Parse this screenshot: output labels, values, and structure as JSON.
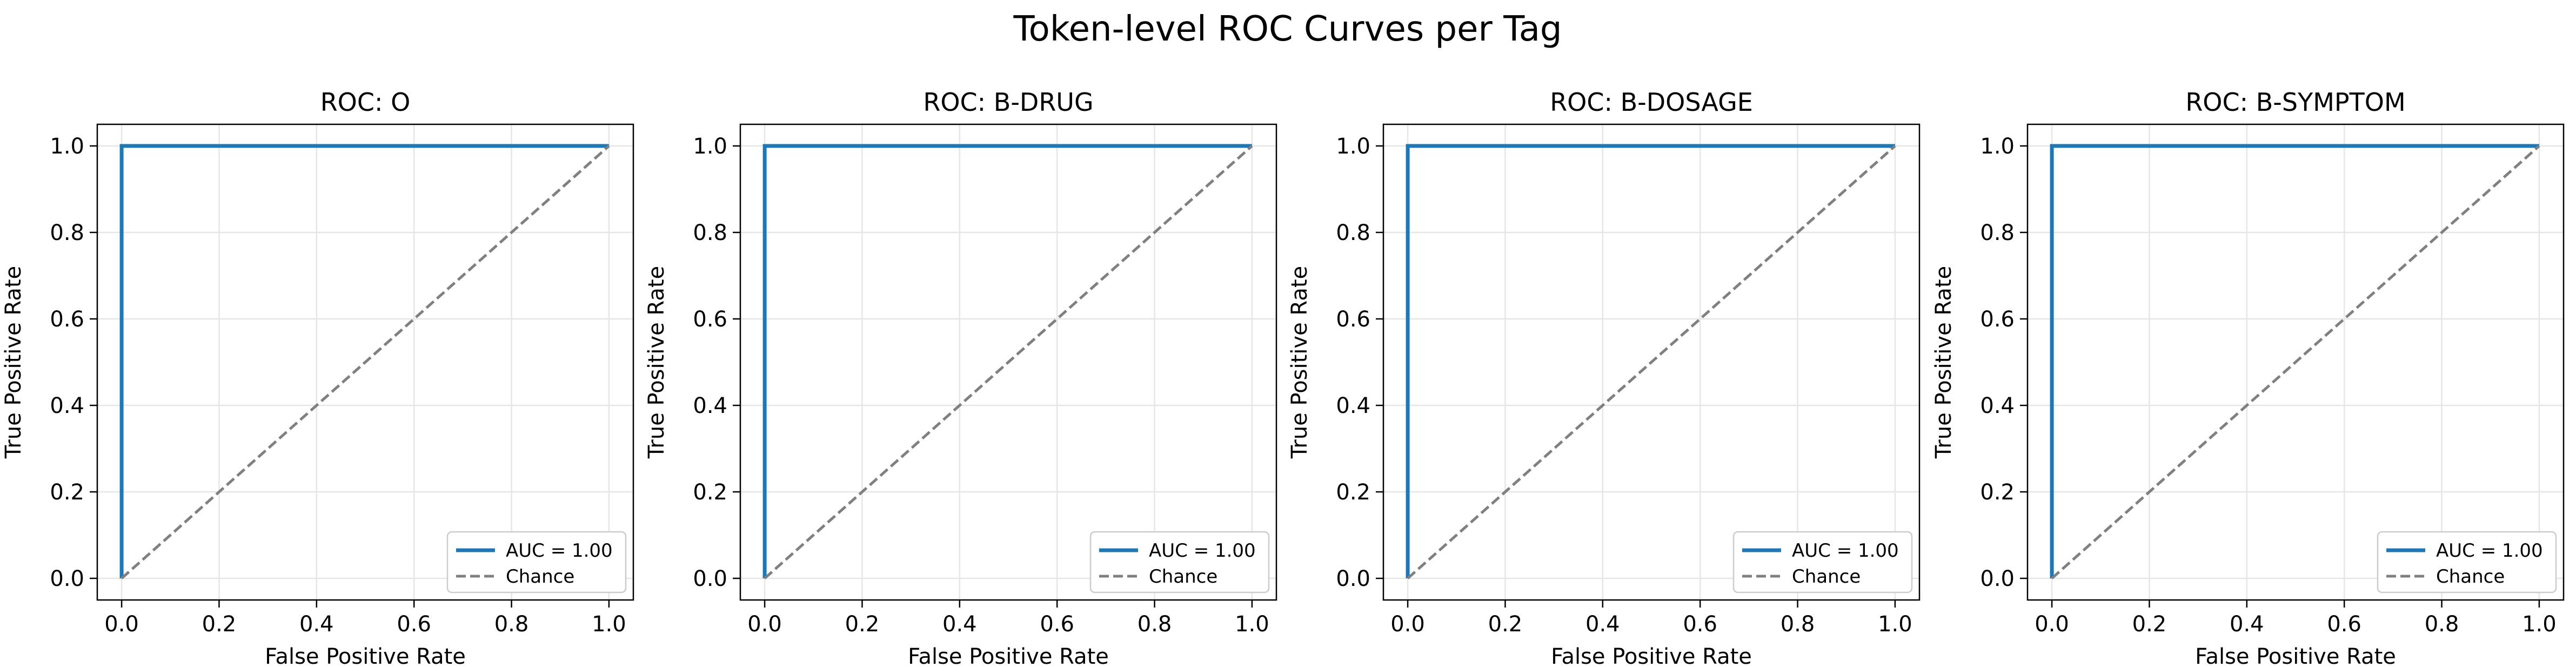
{
  "figure": {
    "title": "Token-level ROC Curves per Tag"
  },
  "colors": {
    "roc_line": "#1f77b4",
    "chance_line": "#808080",
    "grid": "#e6e6e6",
    "axes": "#000000",
    "background": "#ffffff"
  },
  "chart_data": [
    {
      "type": "line",
      "title": "ROC: O",
      "xlabel": "False Positive Rate",
      "ylabel": "True Positive Rate",
      "xlim": [
        -0.05,
        1.05
      ],
      "ylim": [
        -0.05,
        1.05
      ],
      "xticks": [
        "0.0",
        "0.2",
        "0.4",
        "0.6",
        "0.8",
        "1.0"
      ],
      "yticks": [
        "0.0",
        "0.2",
        "0.4",
        "0.6",
        "0.8",
        "1.0"
      ],
      "grid": true,
      "legend_position": "lower-right",
      "series": [
        {
          "name": "AUC = 1.00",
          "style": "solid",
          "x": [
            0.0,
            0.0,
            1.0
          ],
          "y": [
            0.0,
            1.0,
            1.0
          ]
        },
        {
          "name": "Chance",
          "style": "dashed",
          "x": [
            0.0,
            1.0
          ],
          "y": [
            0.0,
            1.0
          ]
        }
      ]
    },
    {
      "type": "line",
      "title": "ROC: B-DRUG",
      "xlabel": "False Positive Rate",
      "ylabel": "True Positive Rate",
      "xlim": [
        -0.05,
        1.05
      ],
      "ylim": [
        -0.05,
        1.05
      ],
      "xticks": [
        "0.0",
        "0.2",
        "0.4",
        "0.6",
        "0.8",
        "1.0"
      ],
      "yticks": [
        "0.0",
        "0.2",
        "0.4",
        "0.6",
        "0.8",
        "1.0"
      ],
      "grid": true,
      "legend_position": "lower-right",
      "series": [
        {
          "name": "AUC = 1.00",
          "style": "solid",
          "x": [
            0.0,
            0.0,
            1.0
          ],
          "y": [
            0.0,
            1.0,
            1.0
          ]
        },
        {
          "name": "Chance",
          "style": "dashed",
          "x": [
            0.0,
            1.0
          ],
          "y": [
            0.0,
            1.0
          ]
        }
      ]
    },
    {
      "type": "line",
      "title": "ROC: B-DOSAGE",
      "xlabel": "False Positive Rate",
      "ylabel": "True Positive Rate",
      "xlim": [
        -0.05,
        1.05
      ],
      "ylim": [
        -0.05,
        1.05
      ],
      "xticks": [
        "0.0",
        "0.2",
        "0.4",
        "0.6",
        "0.8",
        "1.0"
      ],
      "yticks": [
        "0.0",
        "0.2",
        "0.4",
        "0.6",
        "0.8",
        "1.0"
      ],
      "grid": true,
      "legend_position": "lower-right",
      "series": [
        {
          "name": "AUC = 1.00",
          "style": "solid",
          "x": [
            0.0,
            0.0,
            1.0
          ],
          "y": [
            0.0,
            1.0,
            1.0
          ]
        },
        {
          "name": "Chance",
          "style": "dashed",
          "x": [
            0.0,
            1.0
          ],
          "y": [
            0.0,
            1.0
          ]
        }
      ]
    },
    {
      "type": "line",
      "title": "ROC: B-SYMPTOM",
      "xlabel": "False Positive Rate",
      "ylabel": "True Positive Rate",
      "xlim": [
        -0.05,
        1.05
      ],
      "ylim": [
        -0.05,
        1.05
      ],
      "xticks": [
        "0.0",
        "0.2",
        "0.4",
        "0.6",
        "0.8",
        "1.0"
      ],
      "yticks": [
        "0.0",
        "0.2",
        "0.4",
        "0.6",
        "0.8",
        "1.0"
      ],
      "grid": true,
      "legend_position": "lower-right",
      "series": [
        {
          "name": "AUC = 1.00",
          "style": "solid",
          "x": [
            0.0,
            0.0,
            1.0
          ],
          "y": [
            0.0,
            1.0,
            1.0
          ]
        },
        {
          "name": "Chance",
          "style": "dashed",
          "x": [
            0.0,
            1.0
          ],
          "y": [
            0.0,
            1.0
          ]
        }
      ]
    }
  ]
}
